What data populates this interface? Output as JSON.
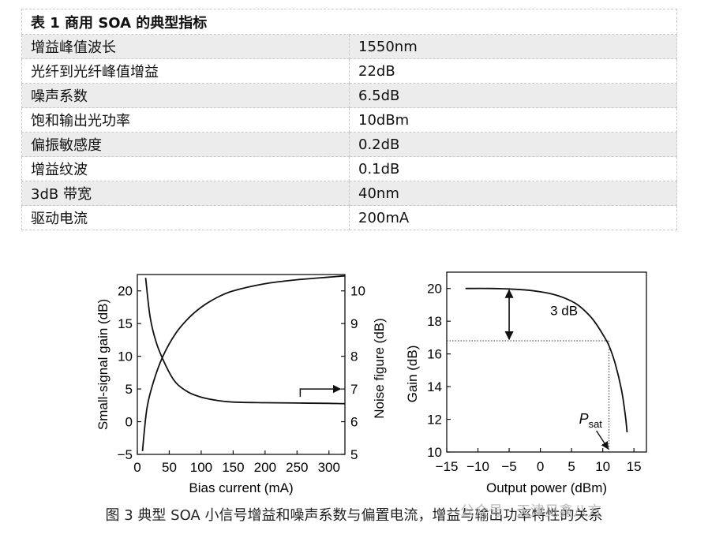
{
  "table": {
    "caption": "表 1 商用 SOA 的典型指标",
    "rows": [
      {
        "param": "增益峰值波长",
        "value": "1550nm"
      },
      {
        "param": "光纤到光纤峰值增益",
        "value": "22dB"
      },
      {
        "param": "噪声系数",
        "value": "6.5dB"
      },
      {
        "param": "饱和输出光功率",
        "value": "10dBm"
      },
      {
        "param": "偏振敏感度",
        "value": "0.2dB"
      },
      {
        "param": "增益纹波",
        "value": "0.1dB"
      },
      {
        "param": "3dB 带宽",
        "value": "40nm"
      },
      {
        "param": "驱动电流",
        "value": "200mA"
      }
    ]
  },
  "chart_data": [
    {
      "type": "line",
      "title": "",
      "xlabel": "Bias current (mA)",
      "ylabel": "Small-signal gain (dB)",
      "y2label": "Noise figure (dB)",
      "xlim": [
        0,
        325
      ],
      "ylim": [
        -5,
        22.5
      ],
      "y2lim": [
        5,
        10.5
      ],
      "xticks": [
        "0",
        "50",
        "100",
        "150",
        "200",
        "250",
        "300"
      ],
      "yticks": [
        "−5",
        "0",
        "5",
        "10",
        "15",
        "20"
      ],
      "y2ticks": [
        "5",
        "6",
        "7",
        "8",
        "9",
        "10"
      ],
      "grid": false,
      "series": [
        {
          "axis": "left",
          "x": [
            8,
            15,
            25,
            40,
            60,
            80,
            100,
            125,
            150,
            200,
            250,
            300,
            325
          ],
          "y": [
            -4.5,
            2,
            6,
            10,
            13.5,
            15.8,
            17.5,
            19,
            20,
            21.1,
            21.7,
            22.1,
            22.3
          ]
        },
        {
          "axis": "right",
          "x": [
            13,
            20,
            30,
            45,
            60,
            80,
            100,
            125,
            150,
            200,
            250,
            300,
            325
          ],
          "y": [
            10.4,
            9.2,
            8.4,
            7.7,
            7.2,
            6.9,
            6.75,
            6.65,
            6.6,
            6.58,
            6.57,
            6.56,
            6.55
          ]
        }
      ],
      "annotations": [
        {
          "type": "arrow",
          "direction": "right",
          "axis": "right",
          "x_from": 255,
          "x_to": 318,
          "y": 7
        }
      ]
    },
    {
      "type": "line",
      "title": "",
      "xlabel": "Output power (dBm)",
      "ylabel": "Gain (dB)",
      "xlim": [
        -15,
        17
      ],
      "ylim": [
        10,
        21
      ],
      "xticks": [
        "−15",
        "−10",
        "−5",
        "0",
        "5",
        "10",
        "15"
      ],
      "yticks": [
        "10",
        "12",
        "14",
        "16",
        "18",
        "20"
      ],
      "grid": false,
      "series": [
        {
          "x": [
            -12,
            -8,
            -5,
            -2,
            0,
            2,
            4,
            6,
            8,
            9,
            10,
            11,
            12,
            13,
            13.6,
            13.9
          ],
          "y": [
            20,
            20,
            19.97,
            19.9,
            19.8,
            19.65,
            19.4,
            19,
            18.3,
            17.8,
            17.2,
            16.5,
            15.4,
            13.8,
            12.3,
            11.2
          ]
        }
      ],
      "annotations": [
        {
          "type": "double-arrow",
          "label": "3 dB",
          "x": -5,
          "y_from": 20,
          "y_to": 16.8
        },
        {
          "type": "dotted-line",
          "y": 16.8
        },
        {
          "type": "dotted-line",
          "x": 11
        },
        {
          "type": "label",
          "text": "P",
          "subscript": "sat",
          "x": 11
        }
      ]
    }
  ],
  "caption": "图 3 典型 SOA 小信号增益和噪声系数与偏置电流，增益与输出功率特性的关系",
  "watermark": "公众号 · 天津见鑫八方"
}
